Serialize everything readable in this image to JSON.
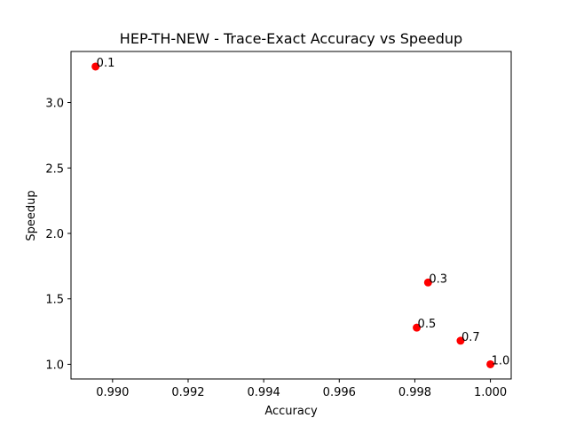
{
  "chart_data": {
    "type": "scatter",
    "title": "HEP-TH-NEW - Trace-Exact Accuracy vs Speedup",
    "xlabel": "Accuracy",
    "ylabel": "Speedup",
    "xlim": [
      0.9889,
      1.00055
    ],
    "ylim": [
      0.888,
      3.39
    ],
    "xticks": [
      0.99,
      0.992,
      0.994,
      0.996,
      0.998,
      1.0
    ],
    "xtick_labels": [
      "0.990",
      "0.992",
      "0.994",
      "0.996",
      "0.998",
      "1.000"
    ],
    "yticks": [
      1.0,
      1.5,
      2.0,
      2.5,
      3.0
    ],
    "ytick_labels": [
      "1.0",
      "1.5",
      "2.0",
      "2.5",
      "3.0"
    ],
    "grid": false,
    "marker_color": "#ff0000",
    "points": [
      {
        "x": 0.98955,
        "y": 3.275,
        "label": "0.1"
      },
      {
        "x": 0.99835,
        "y": 1.625,
        "label": "0.3"
      },
      {
        "x": 0.99805,
        "y": 1.28,
        "label": "0.5"
      },
      {
        "x": 0.99921,
        "y": 1.18,
        "label": "0.7"
      },
      {
        "x": 1.0,
        "y": 1.0,
        "label": "1.0"
      }
    ]
  }
}
